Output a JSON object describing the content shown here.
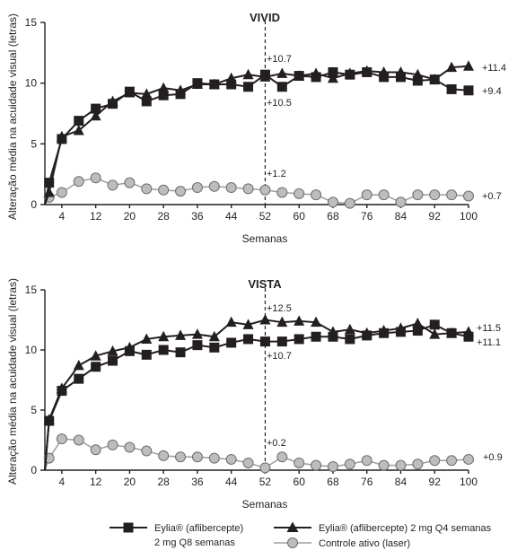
{
  "chart_data": [
    {
      "type": "line",
      "title": "VIVID",
      "ylabel": "Alteração média na acuidade visual (letras)",
      "xlabel": "Semanas",
      "ylim": [
        0,
        15
      ],
      "yticks": [
        0,
        5,
        10,
        15
      ],
      "xlim": [
        0,
        100
      ],
      "xticks": [
        4,
        12,
        20,
        28,
        36,
        44,
        52,
        60,
        68,
        76,
        84,
        92,
        100
      ],
      "grid": false,
      "vline": 52,
      "series": [
        {
          "name": "Eylia® (aflibercepte) 2 mg Q8 semanas",
          "marker": "square",
          "x": [
            0,
            1,
            4,
            8,
            12,
            16,
            20,
            24,
            28,
            32,
            36,
            40,
            44,
            48,
            52,
            56,
            60,
            64,
            68,
            72,
            76,
            80,
            84,
            88,
            92,
            96,
            100
          ],
          "values": [
            0,
            1.8,
            5.4,
            6.9,
            7.9,
            8.3,
            9.3,
            8.5,
            9.0,
            9.1,
            10.0,
            9.9,
            9.9,
            9.7,
            10.7,
            9.7,
            10.6,
            10.5,
            10.9,
            10.7,
            10.9,
            10.5,
            10.5,
            10.2,
            10.3,
            9.5,
            9.4
          ]
        },
        {
          "name": "Eylia® (aflibercepte) 2 mg Q4 semanas",
          "marker": "triangle",
          "x": [
            0,
            1,
            4,
            8,
            12,
            16,
            20,
            24,
            28,
            32,
            36,
            40,
            44,
            48,
            52,
            56,
            60,
            64,
            68,
            72,
            76,
            80,
            84,
            88,
            92,
            96,
            100
          ],
          "values": [
            0,
            1.0,
            5.6,
            6.1,
            7.3,
            8.5,
            9.2,
            9.1,
            9.6,
            9.4,
            9.9,
            9.9,
            10.4,
            10.7,
            10.5,
            10.8,
            10.6,
            10.8,
            10.4,
            10.8,
            11.0,
            10.9,
            10.9,
            10.7,
            10.3,
            11.3,
            11.4
          ]
        },
        {
          "name": "Controle ativo (laser)",
          "marker": "circle",
          "x": [
            0,
            1,
            4,
            8,
            12,
            16,
            20,
            24,
            28,
            32,
            36,
            40,
            44,
            48,
            52,
            56,
            60,
            64,
            68,
            72,
            76,
            80,
            84,
            88,
            92,
            96,
            100
          ],
          "values": [
            0,
            0.6,
            1.0,
            1.9,
            2.2,
            1.6,
            1.8,
            1.3,
            1.2,
            1.1,
            1.4,
            1.5,
            1.4,
            1.3,
            1.2,
            1.0,
            0.9,
            0.8,
            0.2,
            0.1,
            0.8,
            0.8,
            0.2,
            0.8,
            0.8,
            0.8,
            0.7
          ]
        }
      ],
      "annotations": {
        "q8_52": "+10.7",
        "q4_52": "+10.5",
        "laser_52": "+1.2",
        "q4_end": "+11.4",
        "q8_end": "+9.4",
        "laser_end": "+0.7"
      }
    },
    {
      "type": "line",
      "title": "VISTA",
      "ylabel": "Alteração média na acuidade visual (letras)",
      "xlabel": "Semanas",
      "ylim": [
        0,
        15
      ],
      "yticks": [
        0,
        5,
        10,
        15
      ],
      "xlim": [
        0,
        100
      ],
      "xticks": [
        4,
        12,
        20,
        28,
        36,
        44,
        52,
        60,
        68,
        76,
        84,
        92,
        100
      ],
      "grid": false,
      "vline": 52,
      "series": [
        {
          "name": "Eylia® (aflibercepte) 2 mg Q8 semanas",
          "marker": "square",
          "x": [
            0,
            1,
            4,
            8,
            12,
            16,
            20,
            24,
            28,
            32,
            36,
            40,
            44,
            48,
            52,
            56,
            60,
            64,
            68,
            72,
            76,
            80,
            84,
            88,
            92,
            96,
            100
          ],
          "values": [
            0,
            4.1,
            6.6,
            7.6,
            8.6,
            9.1,
            9.9,
            9.6,
            10.0,
            9.8,
            10.4,
            10.2,
            10.6,
            10.9,
            10.7,
            10.7,
            10.9,
            11.1,
            11.1,
            10.9,
            11.2,
            11.4,
            11.5,
            11.6,
            12.1,
            11.4,
            11.1
          ]
        },
        {
          "name": "Eylia® (aflibercepte) 2 mg Q4 semanas",
          "marker": "triangle",
          "x": [
            0,
            1,
            4,
            8,
            12,
            16,
            20,
            24,
            28,
            32,
            36,
            40,
            44,
            48,
            52,
            56,
            60,
            64,
            68,
            72,
            76,
            80,
            84,
            88,
            92,
            96,
            100
          ],
          "values": [
            0,
            4.2,
            6.8,
            8.7,
            9.5,
            9.9,
            10.2,
            10.9,
            11.1,
            11.2,
            11.3,
            11.1,
            12.3,
            12.1,
            12.5,
            12.3,
            12.4,
            12.3,
            11.5,
            11.7,
            11.4,
            11.6,
            11.8,
            12.2,
            11.3,
            11.4,
            11.5
          ]
        },
        {
          "name": "Controle ativo (laser)",
          "marker": "circle",
          "x": [
            0,
            1,
            4,
            8,
            12,
            16,
            20,
            24,
            28,
            32,
            36,
            40,
            44,
            48,
            52,
            56,
            60,
            64,
            68,
            72,
            76,
            80,
            84,
            88,
            92,
            96,
            100
          ],
          "values": [
            0,
            1.0,
            2.6,
            2.5,
            1.7,
            2.1,
            1.9,
            1.6,
            1.2,
            1.1,
            1.1,
            1.0,
            0.9,
            0.6,
            0.2,
            1.1,
            0.6,
            0.4,
            0.3,
            0.5,
            0.8,
            0.4,
            0.4,
            0.5,
            0.8,
            0.8,
            0.9
          ]
        }
      ],
      "annotations": {
        "q4_52": "+12.5",
        "q8_52": "+10.7",
        "laser_52": "+0.2",
        "q4_end": "+11.5",
        "q8_end": "+11.1",
        "laser_end": "+0.9"
      }
    }
  ],
  "legend": {
    "q8_line1": "Eylia® (aflibercepte)",
    "q8_line2": "2 mg Q8 semanas",
    "q4": "Eylia® (aflibercepte) 2 mg Q4 semanas",
    "laser": "Controle ativo (laser)"
  }
}
